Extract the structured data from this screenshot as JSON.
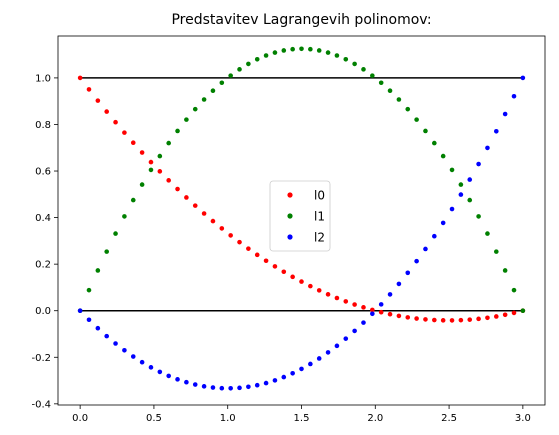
{
  "chart_data": {
    "type": "scatter",
    "title": "Predstavitev Lagrangevih polinomov:",
    "xlabel": "",
    "ylabel": "",
    "xlim": [
      -0.15,
      3.15
    ],
    "ylim": [
      -0.405,
      1.18
    ],
    "xticks": [
      "0.0",
      "0.5",
      "1.0",
      "1.5",
      "2.0",
      "2.5",
      "3.0"
    ],
    "yticks": [
      "-0.4",
      "-0.2",
      "0.0",
      "0.2",
      "0.4",
      "0.6",
      "0.8",
      "1.0"
    ],
    "legend_position": "center",
    "nodes": [
      0,
      2,
      3
    ],
    "reference_lines": [
      {
        "y": 1.0,
        "x": [
          0,
          3
        ],
        "color": "#000000"
      },
      {
        "y": 0.0,
        "x": [
          0,
          3
        ],
        "color": "#000000"
      }
    ],
    "x_samples": {
      "start": 0,
      "end": 3,
      "count": 51
    },
    "series": [
      {
        "name": "l0",
        "color": "#ff0000",
        "formula": "(x-2)(x-3)/6"
      },
      {
        "name": "l1",
        "color": "#008000",
        "formula": "-x(x-3)/2"
      },
      {
        "name": "l2",
        "color": "#0000ff",
        "formula": "x(x-2)/3"
      }
    ]
  }
}
